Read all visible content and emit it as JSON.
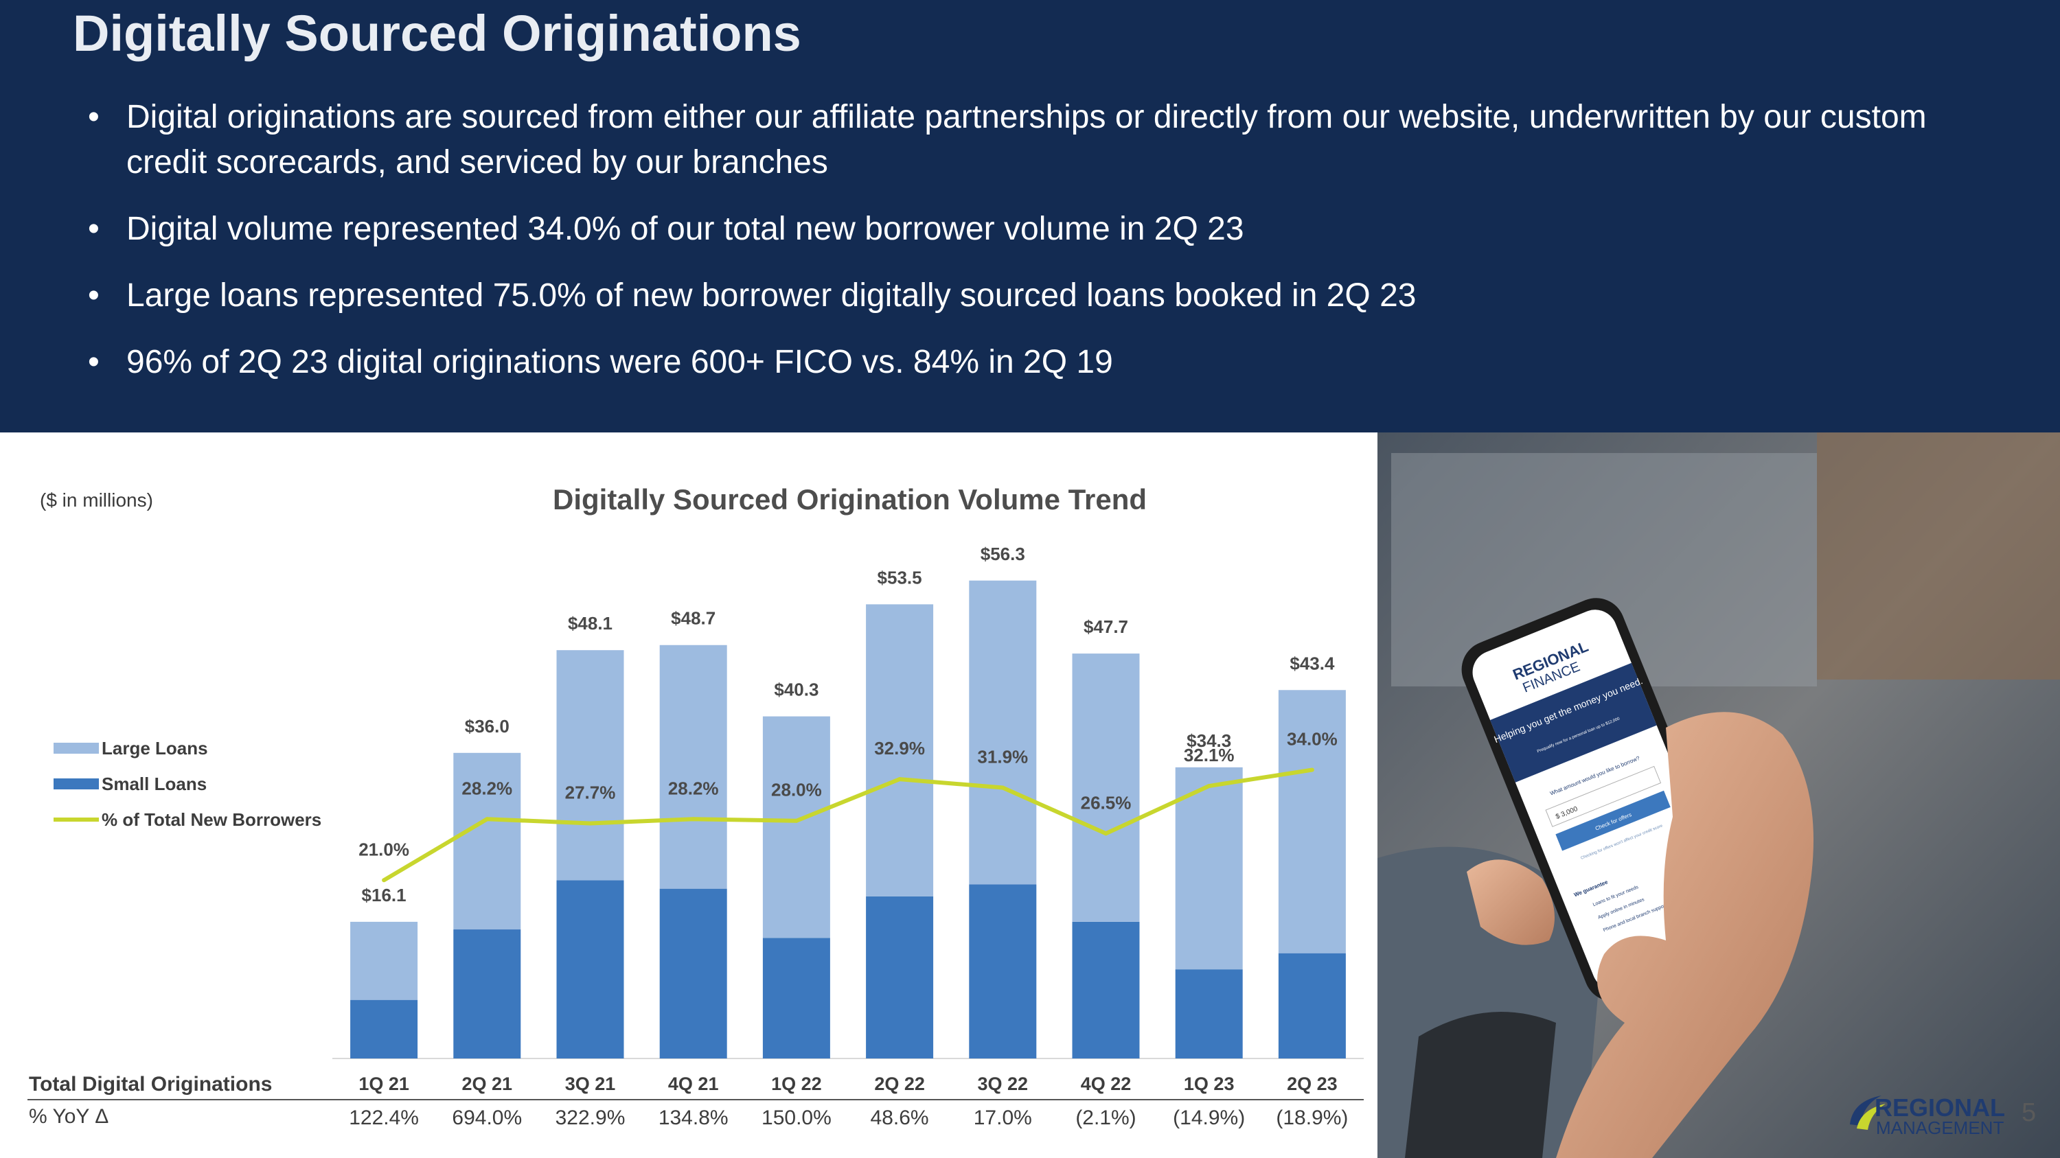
{
  "header": {
    "title": "Digitally Sourced Originations",
    "bullets": [
      "Digital originations are sourced from either our affiliate partnerships or directly from our website, underwritten by our custom credit scorecards, and serviced by our branches",
      "Digital volume represented 34.0% of our total new borrower volume in 2Q 23",
      "Large loans represented 75.0% of new borrower digitally sourced loans booked in 2Q 23",
      "96% of 2Q 23 digital originations were 600+ FICO vs. 84% in 2Q 19"
    ]
  },
  "chart_data": {
    "type": "bar",
    "stacked": true,
    "title": "Digitally Sourced Origination Volume Trend",
    "units_note": "($ in millions)",
    "categories": [
      "1Q 21",
      "2Q 21",
      "3Q 21",
      "4Q 21",
      "1Q 22",
      "2Q 22",
      "3Q 22",
      "4Q 22",
      "1Q 23",
      "2Q 23"
    ],
    "series": [
      {
        "name": "Small Loans",
        "color": "#3c78be",
        "values": [
          6.9,
          15.2,
          21.0,
          20.0,
          14.2,
          19.1,
          20.5,
          16.1,
          10.5,
          12.4
        ]
      },
      {
        "name": "Large Loans",
        "color": "#9dbbe0",
        "values": [
          9.2,
          20.8,
          27.1,
          28.7,
          26.1,
          34.4,
          35.8,
          31.6,
          23.8,
          31.0
        ]
      }
    ],
    "totals": [
      16.1,
      36.0,
      48.1,
      48.7,
      40.3,
      53.5,
      56.3,
      47.7,
      34.3,
      43.4
    ],
    "total_labels": [
      "$16.1",
      "$36.0",
      "$48.1",
      "$48.7",
      "$40.3",
      "$53.5",
      "$56.3",
      "$47.7",
      "$34.3",
      "$43.4"
    ],
    "line_series": {
      "name": "% of Total New Borrowers",
      "color": "#c8d62e",
      "values": [
        21.0,
        28.2,
        27.7,
        28.2,
        28.0,
        32.9,
        31.9,
        26.5,
        32.1,
        34.0
      ],
      "labels": [
        "21.0%",
        "28.2%",
        "27.7%",
        "28.2%",
        "28.0%",
        "32.9%",
        "31.9%",
        "26.5%",
        "32.1%",
        "34.0%"
      ]
    },
    "ylim": [
      0,
      60
    ],
    "line_ylim": [
      0,
      60
    ],
    "legend": [
      "Large Loans",
      "Small Loans",
      "% of Total New Borrowers"
    ],
    "legend_position": "left",
    "table": {
      "row1_label": "Total Digital Originations",
      "row2_label": "% YoY Δ",
      "yoy": [
        "122.4%",
        "694.0%",
        "322.9%",
        "134.8%",
        "150.0%",
        "48.6%",
        "17.0%",
        "(2.1%)",
        "(14.9%)",
        "(18.9%)"
      ]
    }
  },
  "photo": {
    "phone_brand_line1": "REGIONAL",
    "phone_brand_line2": "FINANCE",
    "phone_headline": "Helping you get the money you need.",
    "phone_subtext": "Prequalify now for a personal loan up to $12,000",
    "phone_question": "What amount would you like to borrow?",
    "phone_input_value": "$ 3,000",
    "phone_button": "Check for offers",
    "phone_note": "Checking for offers won't affect your credit score",
    "phone_guarantee_title": "We guarantee",
    "phone_guarantees": [
      "Loans to fit your needs",
      "Apply online in minutes",
      "Phone and local branch support"
    ]
  },
  "footer": {
    "logo_line1": "REGIONAL",
    "logo_line2": "MANAGEMENT",
    "page_number": "5"
  }
}
